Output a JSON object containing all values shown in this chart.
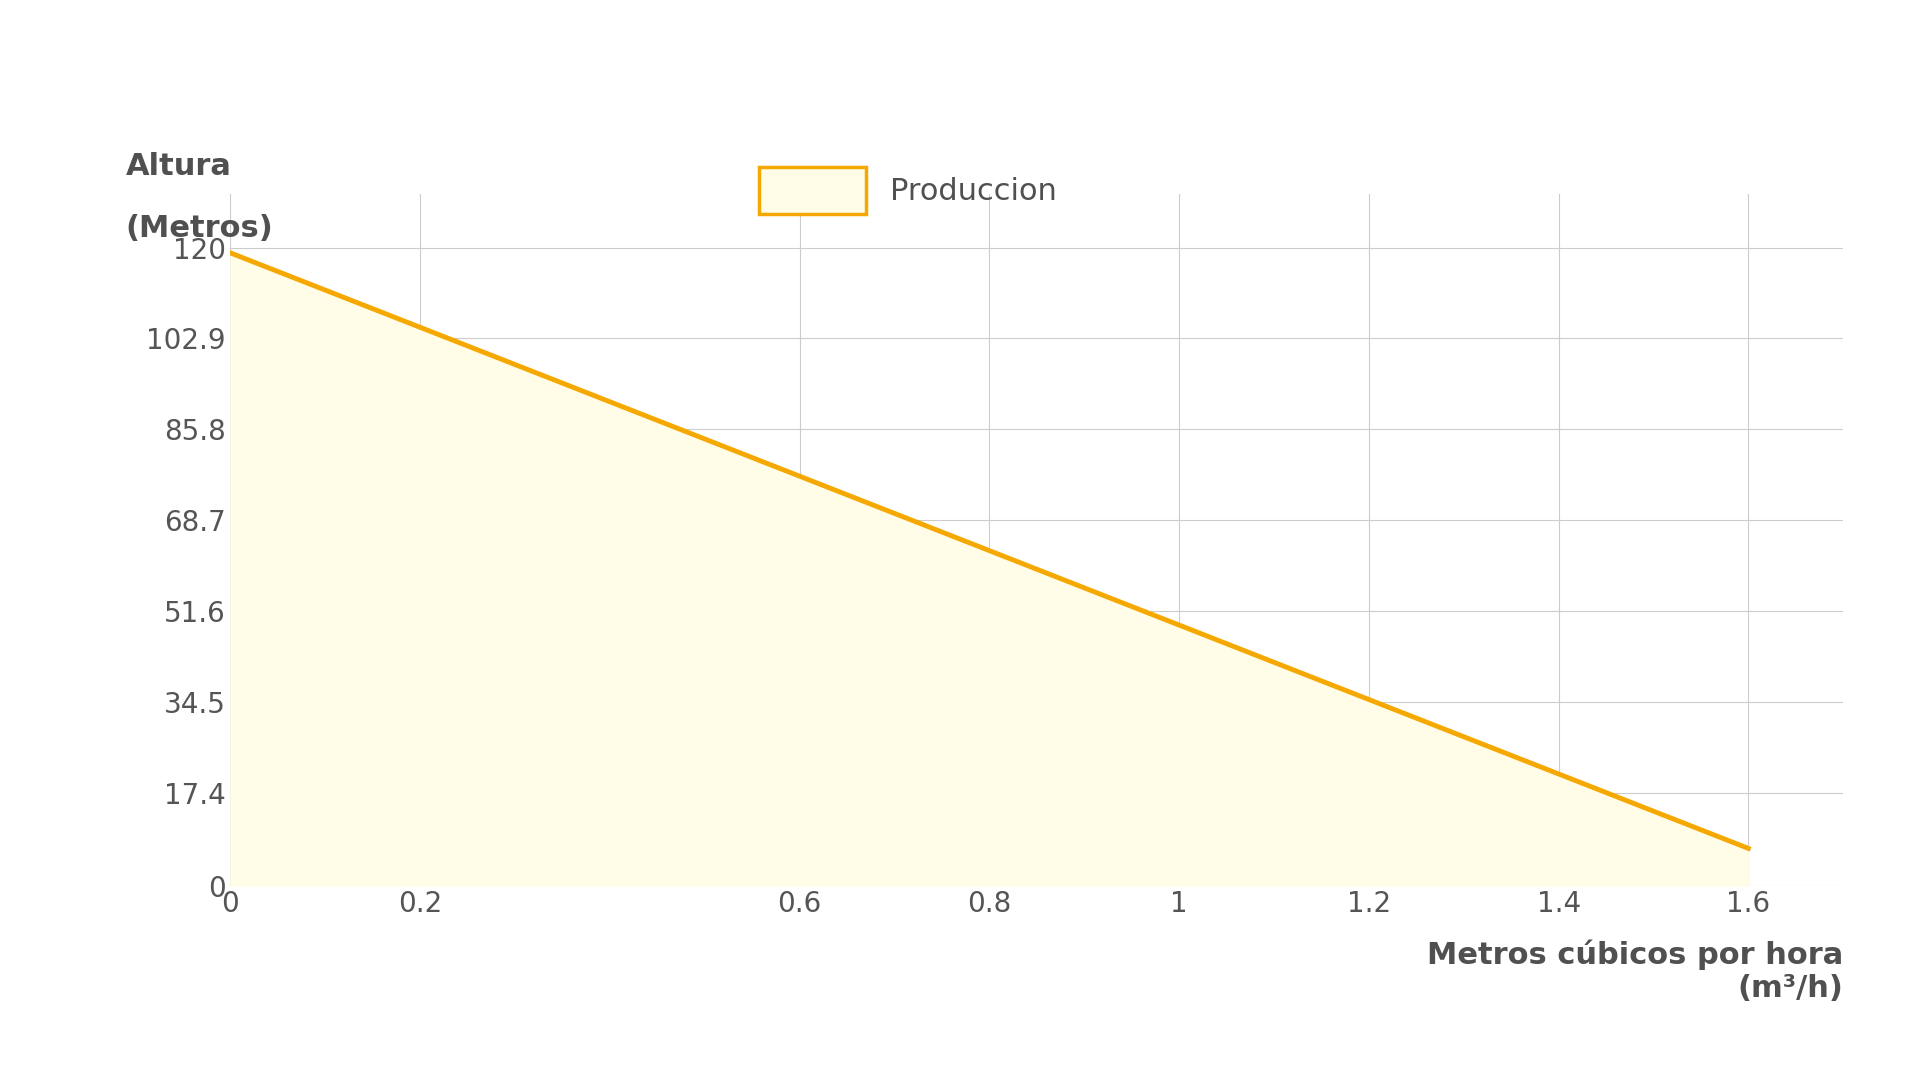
{
  "x_data": [
    0,
    1.6
  ],
  "y_data": [
    119,
    7
  ],
  "line_color": "#F5A800",
  "fill_color": "#FFFDE7",
  "line_width": 3.5,
  "xlabel": "Metros cúbicos por hora\n(m³/h)",
  "ylabel_line1": "Altura",
  "ylabel_line2": "(Metros)",
  "xticks": [
    0,
    0.2,
    0.6,
    0.8,
    1.0,
    1.2,
    1.4,
    1.6
  ],
  "yticks": [
    0,
    17.4,
    34.5,
    51.6,
    68.7,
    85.8,
    102.9,
    120
  ],
  "xlim": [
    0,
    1.7
  ],
  "ylim": [
    0,
    130
  ],
  "legend_label": "Produccion",
  "background_color": "#ffffff",
  "grid_color": "#cccccc",
  "tick_label_color": "#555555",
  "axis_label_color": "#505050",
  "legend_patch_facecolor": "#FFFDE7",
  "legend_patch_edgecolor": "#F5A800",
  "tick_fontsize": 20,
  "label_fontsize": 22,
  "legend_fontsize": 22
}
